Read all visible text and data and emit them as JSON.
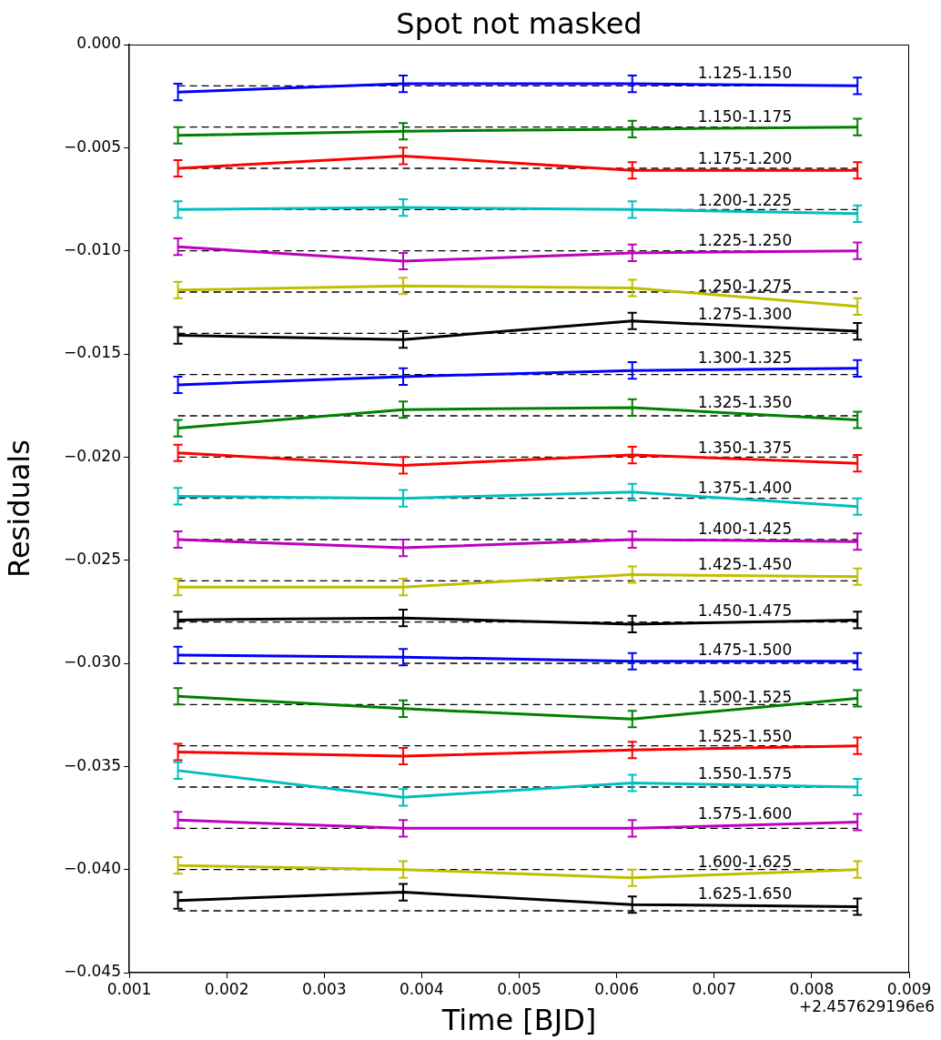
{
  "chart_data": {
    "type": "line",
    "title": "Spot not masked",
    "xlabel": "Time [BJD]",
    "ylabel": "Residuals",
    "annotations": [
      "+2.457629196e6"
    ],
    "x": [
      0.0015,
      0.00381,
      0.00616,
      0.00847
    ],
    "xlim": [
      0.001,
      0.009
    ],
    "xticks": [
      0.001,
      0.002,
      0.003,
      0.004,
      0.005,
      0.006,
      0.007,
      0.008,
      0.009
    ],
    "ylim": [
      -0.045,
      0
    ],
    "yticks": [
      {
        "value": -0.045,
        "label": "−0.045"
      },
      {
        "value": -0.04,
        "label": "−0.040"
      },
      {
        "value": -0.035,
        "label": "−0.035"
      },
      {
        "value": -0.03,
        "label": "−0.030"
      },
      {
        "value": -0.025,
        "label": "−0.025"
      },
      {
        "value": -0.02,
        "label": "−0.020"
      },
      {
        "value": -0.015,
        "label": "−0.015"
      },
      {
        "value": -0.01,
        "label": "−0.010"
      },
      {
        "value": -0.005,
        "label": "−0.005"
      },
      {
        "value": 0,
        "label": "0.000"
      }
    ],
    "grid": false,
    "legend": false,
    "marker": "none",
    "line_style": "solid",
    "ref_lines": [
      {
        "axis": "y",
        "value": -0.002,
        "color": "#000000",
        "line_style": "dashed"
      },
      {
        "axis": "y",
        "value": -0.004,
        "color": "#000000",
        "line_style": "dashed"
      },
      {
        "axis": "y",
        "value": -0.006,
        "color": "#000000",
        "line_style": "dashed"
      },
      {
        "axis": "y",
        "value": -0.008,
        "color": "#000000",
        "line_style": "dashed"
      },
      {
        "axis": "y",
        "value": -0.01,
        "color": "#000000",
        "line_style": "dashed"
      },
      {
        "axis": "y",
        "value": -0.012,
        "color": "#000000",
        "line_style": "dashed"
      },
      {
        "axis": "y",
        "value": -0.014,
        "color": "#000000",
        "line_style": "dashed"
      },
      {
        "axis": "y",
        "value": -0.016,
        "color": "#000000",
        "line_style": "dashed"
      },
      {
        "axis": "y",
        "value": -0.018,
        "color": "#000000",
        "line_style": "dashed"
      },
      {
        "axis": "y",
        "value": -0.02,
        "color": "#000000",
        "line_style": "dashed"
      },
      {
        "axis": "y",
        "value": -0.022,
        "color": "#000000",
        "line_style": "dashed"
      },
      {
        "axis": "y",
        "value": -0.024,
        "color": "#000000",
        "line_style": "dashed"
      },
      {
        "axis": "y",
        "value": -0.026,
        "color": "#000000",
        "line_style": "dashed"
      },
      {
        "axis": "y",
        "value": -0.028,
        "color": "#000000",
        "line_style": "dashed"
      },
      {
        "axis": "y",
        "value": -0.03,
        "color": "#000000",
        "line_style": "dashed"
      },
      {
        "axis": "y",
        "value": -0.032,
        "color": "#000000",
        "line_style": "dashed"
      },
      {
        "axis": "y",
        "value": -0.034,
        "color": "#000000",
        "line_style": "dashed"
      },
      {
        "axis": "y",
        "value": -0.036,
        "color": "#000000",
        "line_style": "dashed"
      },
      {
        "axis": "y",
        "value": -0.038,
        "color": "#000000",
        "line_style": "dashed"
      },
      {
        "axis": "y",
        "value": -0.04,
        "color": "#000000",
        "line_style": "dashed"
      },
      {
        "axis": "y",
        "value": -0.042,
        "color": "#000000",
        "line_style": "dashed"
      }
    ],
    "series": [
      {
        "name": "1.125-1.150",
        "color": "#0000ff",
        "values": [
          -0.0023,
          -0.0019,
          -0.0019,
          -0.002
        ],
        "errors": [
          0.0004,
          0.0004,
          0.0004,
          0.0004
        ]
      },
      {
        "name": "1.150-1.175",
        "color": "#008000",
        "values": [
          -0.0044,
          -0.0042,
          -0.0041,
          -0.004
        ],
        "errors": [
          0.0004,
          0.0004,
          0.0004,
          0.0004
        ]
      },
      {
        "name": "1.175-1.200",
        "color": "#ff0000",
        "values": [
          -0.006,
          -0.0054,
          -0.0061,
          -0.0061
        ],
        "errors": [
          0.0004,
          0.0004,
          0.0004,
          0.0004
        ]
      },
      {
        "name": "1.200-1.225",
        "color": "#00bfbf",
        "values": [
          -0.008,
          -0.0079,
          -0.008,
          -0.0082
        ],
        "errors": [
          0.0004,
          0.0004,
          0.0004,
          0.0004
        ]
      },
      {
        "name": "1.225-1.250",
        "color": "#bf00bf",
        "values": [
          -0.0098,
          -0.0105,
          -0.0101,
          -0.01
        ],
        "errors": [
          0.0004,
          0.0004,
          0.0004,
          0.0004
        ]
      },
      {
        "name": "1.250-1.275",
        "color": "#bfbf00",
        "values": [
          -0.0119,
          -0.0117,
          -0.0118,
          -0.0127
        ],
        "errors": [
          0.0004,
          0.0004,
          0.0004,
          0.0004
        ]
      },
      {
        "name": "1.275-1.300",
        "color": "#000000",
        "values": [
          -0.0141,
          -0.0143,
          -0.0134,
          -0.0139
        ],
        "errors": [
          0.0004,
          0.0004,
          0.0004,
          0.0004
        ]
      },
      {
        "name": "1.300-1.325",
        "color": "#0000ff",
        "values": [
          -0.0165,
          -0.0161,
          -0.0158,
          -0.0157
        ],
        "errors": [
          0.0004,
          0.0004,
          0.0004,
          0.0004
        ]
      },
      {
        "name": "1.325-1.350",
        "color": "#008000",
        "values": [
          -0.0186,
          -0.0177,
          -0.0176,
          -0.0182
        ],
        "errors": [
          0.0004,
          0.0004,
          0.0004,
          0.0004
        ]
      },
      {
        "name": "1.350-1.375",
        "color": "#ff0000",
        "values": [
          -0.0198,
          -0.0204,
          -0.0199,
          -0.0203
        ],
        "errors": [
          0.0004,
          0.0004,
          0.0004,
          0.0004
        ]
      },
      {
        "name": "1.375-1.400",
        "color": "#00bfbf",
        "values": [
          -0.0219,
          -0.022,
          -0.0217,
          -0.0224
        ],
        "errors": [
          0.0004,
          0.0004,
          0.0004,
          0.0004
        ]
      },
      {
        "name": "1.400-1.425",
        "color": "#bf00bf",
        "values": [
          -0.024,
          -0.0244,
          -0.024,
          -0.0241
        ],
        "errors": [
          0.0004,
          0.0004,
          0.0004,
          0.0004
        ]
      },
      {
        "name": "1.425-1.450",
        "color": "#bfbf00",
        "values": [
          -0.0263,
          -0.0263,
          -0.0257,
          -0.0258
        ],
        "errors": [
          0.0004,
          0.0004,
          0.0004,
          0.0004
        ]
      },
      {
        "name": "1.450-1.475",
        "color": "#000000",
        "values": [
          -0.0279,
          -0.0278,
          -0.0281,
          -0.0279
        ],
        "errors": [
          0.0004,
          0.0004,
          0.0004,
          0.0004
        ]
      },
      {
        "name": "1.475-1.500",
        "color": "#0000ff",
        "values": [
          -0.0296,
          -0.0297,
          -0.0299,
          -0.0299
        ],
        "errors": [
          0.0004,
          0.0004,
          0.0004,
          0.0004
        ]
      },
      {
        "name": "1.500-1.525",
        "color": "#008000",
        "values": [
          -0.0316,
          -0.0322,
          -0.0327,
          -0.0317
        ],
        "errors": [
          0.0004,
          0.0004,
          0.0004,
          0.0004
        ]
      },
      {
        "name": "1.525-1.550",
        "color": "#ff0000",
        "values": [
          -0.0343,
          -0.0345,
          -0.0342,
          -0.034
        ],
        "errors": [
          0.0004,
          0.0004,
          0.0004,
          0.0004
        ]
      },
      {
        "name": "1.550-1.575",
        "color": "#00bfbf",
        "values": [
          -0.0352,
          -0.0365,
          -0.0358,
          -0.036
        ],
        "errors": [
          0.0004,
          0.0004,
          0.0004,
          0.0004
        ]
      },
      {
        "name": "1.575-1.600",
        "color": "#bf00bf",
        "values": [
          -0.0376,
          -0.038,
          -0.038,
          -0.0377
        ],
        "errors": [
          0.0004,
          0.0004,
          0.0004,
          0.0004
        ]
      },
      {
        "name": "1.600-1.625",
        "color": "#bfbf00",
        "values": [
          -0.0398,
          -0.04,
          -0.0404,
          -0.04
        ],
        "errors": [
          0.0004,
          0.0004,
          0.0004,
          0.0004
        ]
      },
      {
        "name": "1.625-1.650",
        "color": "#000000",
        "values": [
          -0.0415,
          -0.0411,
          -0.0417,
          -0.0418
        ],
        "errors": [
          0.0004,
          0.0004,
          0.0004,
          0.0004
        ]
      }
    ]
  }
}
